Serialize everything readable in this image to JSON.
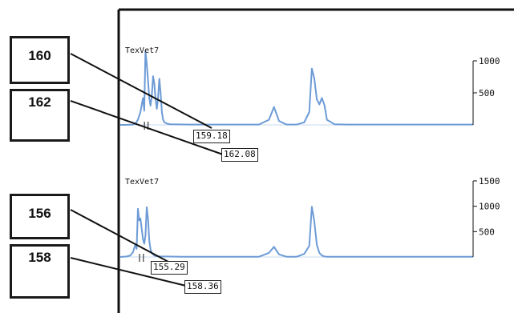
{
  "chart_data": [
    {
      "type": "line",
      "title": "TexVet7",
      "xlim": [
        140,
        420
      ],
      "ylim": [
        0,
        1500
      ],
      "yticks": [
        500,
        1000
      ],
      "color": "#6d9bd6",
      "grid": false,
      "series": [
        {
          "x": [
            140,
            145,
            150,
            152,
            154,
            156,
            158,
            159,
            160,
            161,
            162,
            163,
            164,
            165,
            166,
            167,
            168,
            169,
            170,
            171,
            172,
            173,
            174,
            175,
            176,
            177,
            178,
            180,
            185,
            195,
            210,
            230,
            250,
            258,
            262,
            266,
            272,
            280,
            286,
            290,
            292,
            294,
            296,
            298,
            300,
            302,
            304,
            310,
            320,
            340,
            360,
            380,
            400,
            420
          ],
          "y": [
            0,
            0,
            5,
            20,
            80,
            200,
            420,
            220,
            1150,
            950,
            700,
            420,
            300,
            450,
            760,
            650,
            400,
            250,
            420,
            720,
            500,
            200,
            80,
            40,
            30,
            20,
            15,
            10,
            8,
            5,
            5,
            5,
            5,
            80,
            280,
            60,
            5,
            5,
            40,
            200,
            880,
            720,
            400,
            320,
            420,
            310,
            80,
            10,
            5,
            5,
            5,
            5,
            5,
            5
          ]
        }
      ],
      "allele_calls": [
        {
          "call": "160",
          "size": "159.18"
        },
        {
          "call": "162",
          "size": "162.08"
        }
      ]
    },
    {
      "type": "line",
      "title": "TexVet7",
      "xlim": [
        140,
        420
      ],
      "ylim": [
        0,
        1500
      ],
      "yticks": [
        500,
        1000,
        1500
      ],
      "color": "#6d9bd6",
      "grid": false,
      "series": [
        {
          "x": [
            140,
            145,
            148,
            150,
            152,
            153,
            154,
            155,
            156,
            157,
            158,
            159,
            160,
            161,
            162,
            163,
            164,
            165,
            166,
            167,
            168,
            170,
            172,
            175,
            180,
            190,
            210,
            230,
            250,
            258,
            262,
            266,
            272,
            280,
            286,
            290,
            292,
            294,
            296,
            298,
            300,
            302,
            304,
            310,
            320,
            340,
            360,
            380,
            400,
            420
          ],
          "y": [
            0,
            10,
            30,
            90,
            250,
            160,
            950,
            720,
            760,
            560,
            350,
            260,
            420,
            980,
            760,
            330,
            150,
            80,
            50,
            30,
            20,
            15,
            10,
            10,
            8,
            5,
            5,
            5,
            5,
            80,
            200,
            50,
            5,
            5,
            60,
            220,
            990,
            700,
            240,
            80,
            30,
            10,
            5,
            5,
            5,
            5,
            5,
            5,
            5,
            5
          ]
        }
      ],
      "allele_calls": [
        {
          "call": "156",
          "size": "155.29"
        },
        {
          "call": "158",
          "size": "158.36"
        }
      ]
    }
  ]
}
